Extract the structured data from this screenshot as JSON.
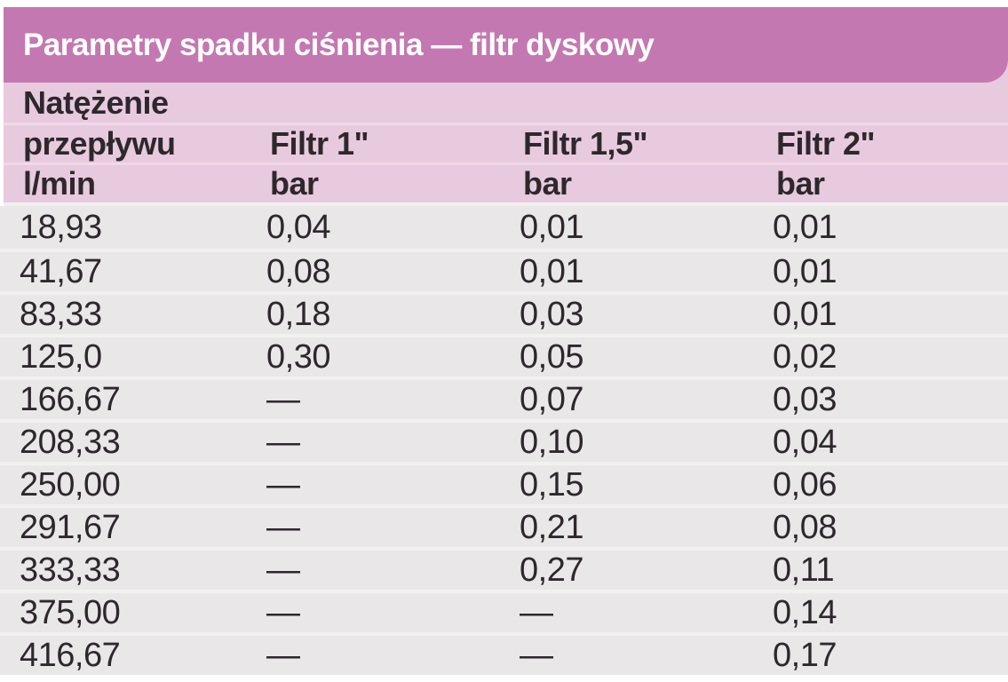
{
  "title": "Parametry spadku ciśnienia — filtr dyskowy",
  "header": {
    "line1": [
      "Natężenie",
      "",
      "",
      ""
    ],
    "line2": [
      "przepływu",
      "Filtr 1\"",
      "Filtr 1,5\"",
      "Filtr 2\""
    ],
    "line3": [
      "l/min",
      "bar",
      "bar",
      "bar"
    ]
  },
  "chart_data": {
    "type": "table",
    "title": "Parametry spadku ciśnienia — filtr dyskowy",
    "columns": [
      "Natężenie przepływu l/min",
      "Filtr 1\" bar",
      "Filtr 1,5\" bar",
      "Filtr 2\" bar"
    ],
    "rows": [
      [
        "18,93",
        "0,04",
        "0,01",
        "0,01"
      ],
      [
        "41,67",
        "0,08",
        "0,01",
        "0,01"
      ],
      [
        "83,33",
        "0,18",
        "0,03",
        "0,01"
      ],
      [
        "125,0",
        "0,30",
        "0,05",
        "0,02"
      ],
      [
        "166,67",
        "—",
        "0,07",
        "0,03"
      ],
      [
        "208,33",
        "—",
        "0,10",
        "0,04"
      ],
      [
        "250,00",
        "—",
        "0,15",
        "0,06"
      ],
      [
        "291,67",
        "—",
        "0,21",
        "0,08"
      ],
      [
        "333,33",
        "—",
        "0,27",
        "0,11"
      ],
      [
        "375,00",
        "—",
        "—",
        "0,14"
      ],
      [
        "416,67",
        "—",
        "—",
        "0,17"
      ]
    ]
  },
  "colors": {
    "title_bg": "#c478b1",
    "title_text": "#ffffff",
    "header_bg": "#e8cadf",
    "header_separator": "#f0d8e8",
    "row_bg": "#e9e7e8",
    "row_separator": "#f2f0f1",
    "text_dark": "#2d282c",
    "page_bg": "#ffffff"
  }
}
